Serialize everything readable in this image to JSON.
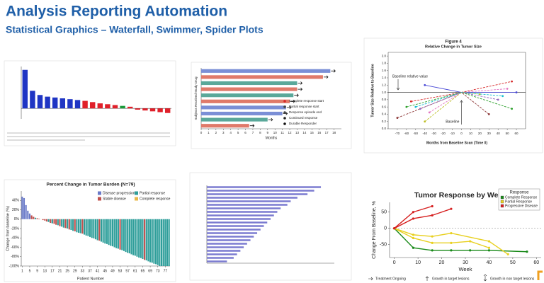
{
  "header": {
    "title": "Analysis Reporting Automation",
    "subtitle": "Statistical Graphics – Waterfall, Swimmer, Spider Plots"
  },
  "chart_data": [
    {
      "type": "bar",
      "values": [
        92,
        42,
        32,
        28,
        26,
        24,
        22,
        20,
        18,
        15,
        12,
        10,
        8,
        6,
        4,
        -3,
        -5,
        -7,
        -9,
        -11
      ],
      "colors": [
        "#1f35c4",
        "#1f35c4",
        "#1f35c4",
        "#1f35c4",
        "#1f35c4",
        "#1f35c4",
        "#1f35c4",
        "#1f35c4",
        "#e0202a",
        "#e0202a",
        "#e0202a",
        "#e0202a",
        "#e0202a",
        "#1a9a3a",
        "#e0202a",
        "#e0202a",
        "#e0202a",
        "#e0202a",
        "#e0202a",
        "#e0202a"
      ],
      "ylim": [
        -25,
        100
      ]
    },
    {
      "type": "swimmer",
      "xlabel": "Months",
      "ylabel": "Subjects Received Study Drug",
      "xlim": [
        0,
        19
      ],
      "xticks": [
        0,
        1,
        2,
        3,
        4,
        5,
        6,
        7,
        8,
        9,
        10,
        11,
        12,
        13,
        14,
        15,
        16,
        17,
        18
      ],
      "values": [
        17.5,
        16.5,
        13,
        13,
        12.5,
        12,
        11.5,
        11,
        9,
        6.5
      ],
      "colors": [
        "#7b8fd6",
        "#e07a6a",
        "#5aa89a",
        "#e07a6a",
        "#5aa89a",
        "#e07a6a",
        "#7b8fd6",
        "#7b8fd6",
        "#5aa89a",
        "#e07a6a"
      ],
      "legend": [
        {
          "label": "Complete response start",
          "color": "#d62728"
        },
        {
          "label": "Partial response start",
          "color": "#444444"
        },
        {
          "label": "Response episode end",
          "color": "#444444"
        },
        {
          "label": "Continued response",
          "color": "#222222"
        },
        {
          "label": "Durable Responder",
          "color": "#111111"
        }
      ]
    },
    {
      "type": "spider",
      "title": "Figure 4",
      "subtitle": "Relative Change in Tumor Size",
      "xlabel": "Months from Baseline Scan (Time 0)",
      "ylabel": "Tumor Size Relative to Baseline",
      "xlim": [
        -80,
        70
      ],
      "ylim": [
        0,
        2.1
      ],
      "xticks": [
        -70,
        -60,
        -50,
        -40,
        -30,
        -20,
        -10,
        0,
        10,
        20,
        30,
        40,
        50,
        60
      ],
      "yticks": [
        {
          "value": 0,
          "label": "0.0"
        },
        0.2,
        0.4,
        0.6,
        0.8,
        {
          "value": 1,
          "label": "1.0"
        },
        1.2,
        1.4,
        1.6,
        1.8,
        {
          "value": 2,
          "label": "2.0"
        }
      ],
      "annotations": [
        "Baseline relative value",
        "Baseline"
      ],
      "series": [
        {
          "color": "#4b4bd6",
          "x": [
            -40,
            0,
            60
          ],
          "values": [
            1.2,
            1,
            1.0
          ]
        },
        {
          "color": "#8e3a3a",
          "x": [
            -70,
            0,
            30
          ],
          "values": [
            0.3,
            1,
            0.4
          ]
        },
        {
          "color": "#2ca02c",
          "x": [
            -60,
            0,
            55
          ],
          "values": [
            0.6,
            1,
            0.55
          ]
        },
        {
          "color": "#9467bd",
          "x": [
            -45,
            0,
            40
          ],
          "values": [
            0.55,
            1,
            0.8
          ]
        },
        {
          "color": "#e377c2",
          "x": [
            -35,
            0,
            50
          ],
          "values": [
            0.45,
            1,
            1.1
          ]
        },
        {
          "color": "#bcbd22",
          "x": [
            -40,
            0,
            20
          ],
          "values": [
            0.2,
            1,
            0.95
          ]
        },
        {
          "color": "#d62728",
          "x": [
            -55,
            0,
            55
          ],
          "values": [
            0.75,
            1,
            1.3
          ]
        },
        {
          "color": "#17becf",
          "x": [
            -50,
            0,
            45
          ],
          "values": [
            0.6,
            1,
            0.9
          ]
        }
      ]
    },
    {
      "type": "waterfall",
      "title": "Percent Change in Tumor Burden (N=79)",
      "xlabel": "Patient Number",
      "ylabel": "Change from baseline (%)",
      "ylim": [
        -100,
        60
      ],
      "yticks": [
        {
          "value": 40,
          "label": "40%"
        },
        {
          "value": 20,
          "label": "20%"
        },
        {
          "value": 0,
          "label": "0%"
        },
        {
          "value": -20,
          "label": "-20%"
        },
        {
          "value": -40,
          "label": "-40%"
        },
        {
          "value": -60,
          "label": "-60%"
        },
        {
          "value": -80,
          "label": "-80%"
        },
        {
          "value": -100,
          "label": "-100%"
        }
      ],
      "xticks": [
        1,
        5,
        9,
        13,
        17,
        21,
        25,
        29,
        33,
        37,
        41,
        45,
        49,
        53,
        57,
        61,
        65,
        69,
        73,
        77
      ],
      "legend": [
        {
          "label": "Disease progression",
          "color": "#6a7ac8"
        },
        {
          "label": "Partial response",
          "color": "#2e9e9a"
        },
        {
          "label": "Stable disease",
          "color": "#c0504d"
        },
        {
          "label": "Complete response",
          "color": "#e8b84a"
        }
      ],
      "values": [
        48,
        45,
        30,
        18,
        12,
        8,
        5,
        3,
        2,
        1,
        0,
        -2,
        -3,
        -5,
        -6,
        -8,
        -9,
        -10,
        -12,
        -13,
        -15,
        -16,
        -18,
        -19,
        -20,
        -22,
        -23,
        -25,
        -26,
        -28,
        -29,
        -30,
        -31,
        -33,
        -35,
        -36,
        -38,
        -40,
        -41,
        -43,
        -45,
        -46,
        -48,
        -50,
        -52,
        -53,
        -55,
        -57,
        -58,
        -60,
        -62,
        -63,
        -65,
        -66,
        -68,
        -70,
        -72,
        -73,
        -75,
        -77,
        -78,
        -80,
        -82,
        -83,
        -85,
        -87,
        -88,
        -90,
        -92,
        -93,
        -95,
        -96,
        -98,
        -100,
        -100,
        -100,
        -100,
        -100,
        -100
      ],
      "groups": [
        0,
        0,
        0,
        0,
        0,
        2,
        2,
        1,
        2,
        2,
        1,
        2,
        2,
        2,
        1,
        2,
        1,
        2,
        2,
        1,
        2,
        1,
        1,
        2,
        1,
        2,
        1,
        1,
        2,
        1,
        1,
        1,
        2,
        1,
        1,
        1,
        1,
        1,
        1,
        1,
        1,
        2,
        1,
        1,
        1,
        1,
        1,
        1,
        1,
        1,
        1,
        1,
        2,
        1,
        1,
        1,
        1,
        1,
        1,
        1,
        1,
        1,
        1,
        1,
        1,
        2,
        1,
        1,
        1,
        1,
        1,
        1,
        1,
        1,
        1,
        1,
        1,
        1,
        1
      ]
    },
    {
      "type": "swimmer-simple",
      "xlim": [
        0,
        19
      ],
      "color": "#7b7bd0",
      "values": [
        17,
        16,
        15,
        13.5,
        12.5,
        12,
        11,
        10.5,
        10,
        9.5,
        9,
        8.5,
        8,
        7.5,
        7,
        6.5,
        6,
        5.5,
        5,
        4.5,
        4,
        3
      ]
    },
    {
      "type": "line",
      "title": "Tumor Response by Week",
      "xlabel": "Week",
      "ylabel": "Change From Baseline, %",
      "legend_title": "Response",
      "xlim": [
        -2,
        62
      ],
      "ylim": [
        -90,
        80
      ],
      "xticks": [
        0,
        10,
        20,
        30,
        40,
        50,
        60
      ],
      "yticks": [
        50,
        0,
        -50
      ],
      "series": [
        {
          "name": "Complete Response",
          "color": "#1a8a1a",
          "x": [
            0,
            8,
            16,
            24,
            32,
            40,
            56
          ],
          "values": [
            0,
            -60,
            -68,
            -68,
            -68,
            -68,
            -72
          ]
        },
        {
          "name": "Partial Response",
          "color": "#e8d020",
          "x": [
            0,
            8,
            16,
            24,
            32,
            40
          ],
          "values": [
            0,
            -30,
            -45,
            -45,
            -40,
            -60
          ]
        },
        {
          "name": "Partial Response",
          "color": "#e8d020",
          "x": [
            0,
            8,
            16,
            24,
            40,
            48
          ],
          "values": [
            0,
            -20,
            -25,
            -15,
            -40,
            -80
          ]
        },
        {
          "name": "Progressive Disease",
          "color": "#d62020",
          "x": [
            0,
            8,
            16
          ],
          "values": [
            0,
            50,
            68
          ]
        },
        {
          "name": "Progressive Disease",
          "color": "#d62020",
          "x": [
            0,
            8,
            16,
            24
          ],
          "values": [
            0,
            30,
            40,
            60
          ]
        }
      ],
      "footer": [
        "Treatment Ongoing",
        "Growth in target lesions",
        "Growth in non target lesions"
      ]
    }
  ]
}
